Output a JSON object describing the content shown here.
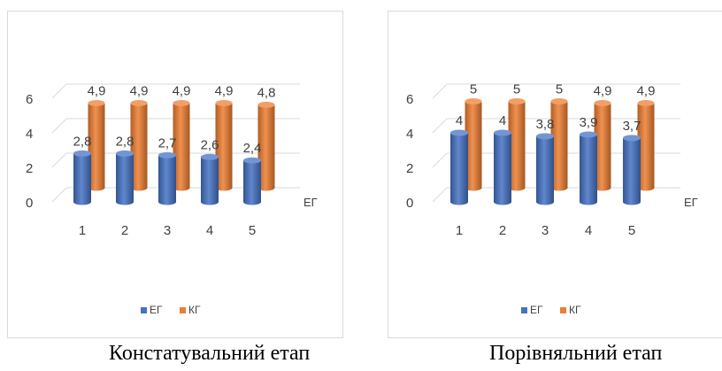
{
  "chart_data": [
    {
      "type": "bar",
      "bar_style": "3d-cylinder",
      "categories": [
        "1",
        "2",
        "3",
        "4",
        "5"
      ],
      "series": [
        {
          "name": "ЕГ",
          "values": [
            2.8,
            2.8,
            2.7,
            2.6,
            2.4
          ],
          "labels": [
            "2,8",
            "2,8",
            "2,7",
            "2,6",
            "2,4"
          ],
          "color": "#4472C4"
        },
        {
          "name": "КГ",
          "values": [
            4.9,
            4.9,
            4.9,
            4.9,
            4.8
          ],
          "labels": [
            "4,9",
            "4,9",
            "4,9",
            "4,9",
            "4,8"
          ],
          "color": "#ED7D31"
        }
      ],
      "y_ticks": [
        "0",
        "2",
        "4",
        "6"
      ],
      "ylim": [
        0,
        6
      ],
      "depth_axis_label": "ЕГ",
      "legend": "bottom",
      "grid": true,
      "caption": "Констатувальний етап"
    },
    {
      "type": "bar",
      "bar_style": "3d-cylinder",
      "categories": [
        "1",
        "2",
        "3",
        "4",
        "5"
      ],
      "series": [
        {
          "name": "ЕГ",
          "values": [
            4,
            4,
            3.8,
            3.9,
            3.7
          ],
          "labels": [
            "4",
            "4",
            "3,8",
            "3,9",
            "3,7"
          ],
          "color": "#4472C4"
        },
        {
          "name": "КГ",
          "values": [
            5,
            5,
            5,
            4.9,
            4.9
          ],
          "labels": [
            "5",
            "5",
            "5",
            "4,9",
            "4,9"
          ],
          "color": "#ED7D31"
        }
      ],
      "y_ticks": [
        "0",
        "2",
        "4",
        "6"
      ],
      "ylim": [
        0,
        6
      ],
      "depth_axis_label": "ЕГ",
      "legend": "bottom",
      "grid": true,
      "caption": "Порівняльний етап"
    }
  ]
}
